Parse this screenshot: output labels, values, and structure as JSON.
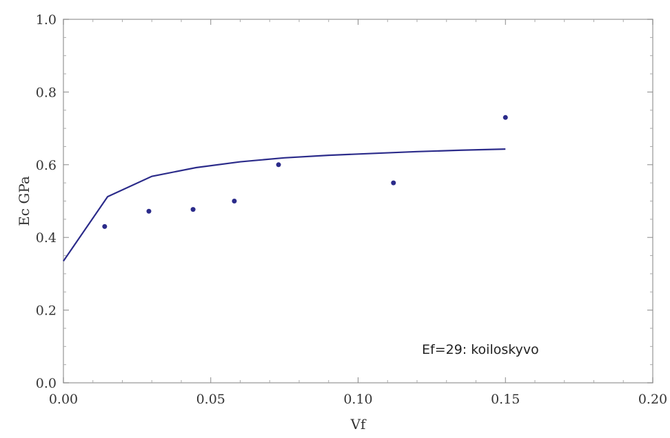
{
  "chart_data": {
    "type": "scatter",
    "xlabel": "Vf",
    "ylabel": "Ec GPa",
    "xlim": [
      0,
      0.2
    ],
    "ylim": [
      0,
      1.0
    ],
    "x_ticks": [
      "0.00",
      "0.05",
      "0.10",
      "0.15",
      "0.20"
    ],
    "y_ticks": [
      "0.0",
      "0.2",
      "0.4",
      "0.6",
      "0.8",
      "1.0"
    ],
    "annotation": "Ef=29: koiloskyvo",
    "grid": false,
    "colors": {
      "series": "#2b2b8a",
      "frame": "#aaaaaa"
    },
    "series": [
      {
        "kind": "points",
        "x": [
          0.014,
          0.029,
          0.044,
          0.058,
          0.073,
          0.112,
          0.15
        ],
        "y": [
          0.43,
          0.472,
          0.477,
          0.5,
          0.6,
          0.55,
          0.73
        ]
      },
      {
        "kind": "line",
        "x": [
          0.0,
          0.015,
          0.03,
          0.045,
          0.06,
          0.075,
          0.09,
          0.105,
          0.12,
          0.135,
          0.15
        ],
        "y": [
          0.335,
          0.512,
          0.568,
          0.592,
          0.608,
          0.619,
          0.626,
          0.631,
          0.636,
          0.64,
          0.643
        ]
      }
    ]
  }
}
